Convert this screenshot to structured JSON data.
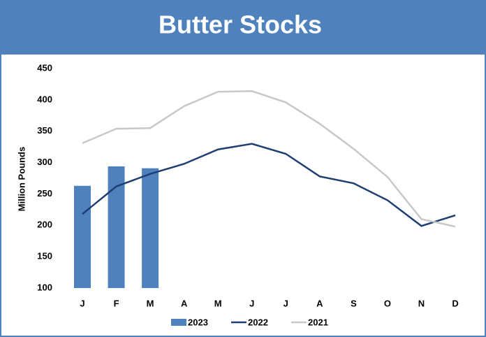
{
  "chart_data": {
    "type": "bar",
    "title": "Butter Stocks",
    "ylabel": "Million Pounds",
    "categories": [
      "J",
      "F",
      "M",
      "A",
      "M",
      "J",
      "J",
      "A",
      "S",
      "O",
      "N",
      "D"
    ],
    "series": [
      {
        "name": "2023",
        "type": "bar",
        "color": "#4f81bd",
        "values": [
          263,
          294,
          291,
          null,
          null,
          null,
          null,
          null,
          null,
          null,
          null,
          null
        ]
      },
      {
        "name": "2022",
        "type": "line",
        "color": "#1f3f73",
        "values": [
          218,
          262,
          282,
          298,
          321,
          330,
          314,
          278,
          267,
          240,
          199,
          216
        ]
      },
      {
        "name": "2021",
        "type": "line",
        "color": "#c8c8c8",
        "values": [
          331,
          354,
          355,
          390,
          413,
          414,
          396,
          362,
          322,
          277,
          210,
          198
        ]
      }
    ],
    "ylim": [
      100,
      450
    ],
    "yticks": [
      100,
      150,
      200,
      250,
      300,
      350,
      400,
      450
    ],
    "grid": false,
    "legend": "bottom"
  }
}
